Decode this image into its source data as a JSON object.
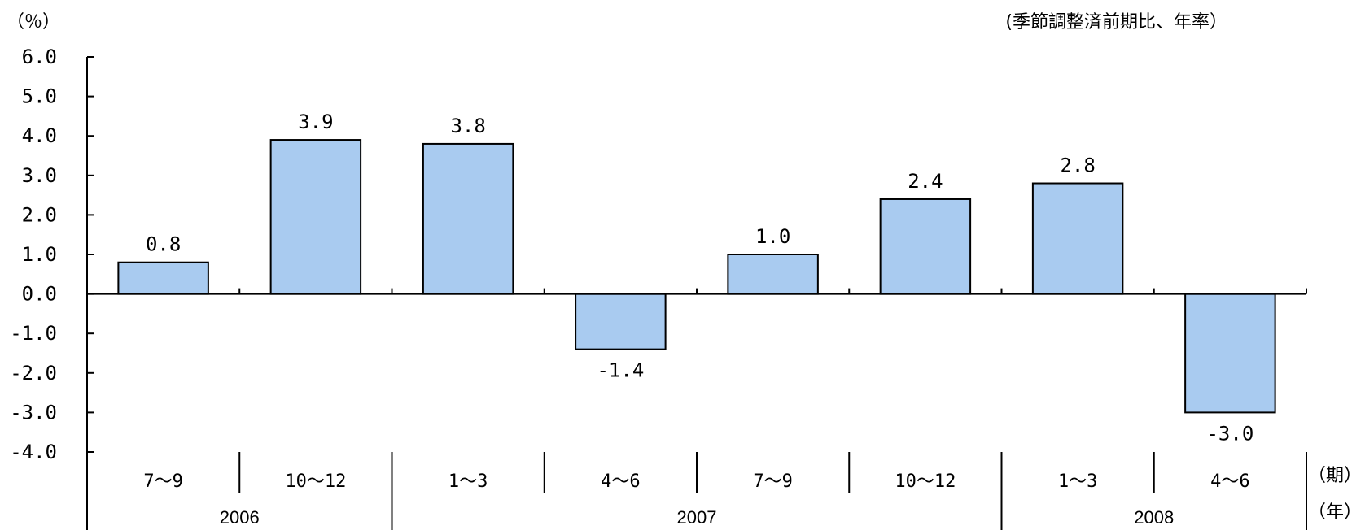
{
  "chart_data": {
    "type": "bar",
    "unit_label": "（％）",
    "note": "(季節調整済前期比、年率）",
    "period_axis_label": "（期）",
    "year_axis_label": "（年）",
    "categories": [
      "7～9",
      "10～12",
      "1～3",
      "4～6",
      "7～9",
      "10～12",
      "1～3",
      "4～6"
    ],
    "values": [
      0.8,
      3.9,
      3.8,
      -1.4,
      1.0,
      2.4,
      2.8,
      -3.0
    ],
    "value_labels": [
      "0.8",
      "3.9",
      "3.8",
      "-1.4",
      "1.0",
      "2.4",
      "2.8",
      "-3.0"
    ],
    "years": [
      {
        "label": "2006",
        "span": [
          0,
          1
        ]
      },
      {
        "label": "2007",
        "span": [
          2,
          5
        ]
      },
      {
        "label": "2008",
        "span": [
          6,
          7
        ]
      }
    ],
    "yticks": [
      6,
      5,
      4,
      3,
      2,
      1,
      0,
      -1,
      -2,
      -3,
      -4
    ],
    "ytick_labels": [
      "6.0",
      "5.0",
      "4.0",
      "3.0",
      "2.0",
      "1.0",
      "0.0",
      "-1.0",
      "-2.0",
      "-3.0",
      "-4.0"
    ],
    "ylim": [
      -4,
      6
    ],
    "grid": false,
    "bar_color": "#a9cbf0",
    "bar_edge_color": "#000000"
  }
}
